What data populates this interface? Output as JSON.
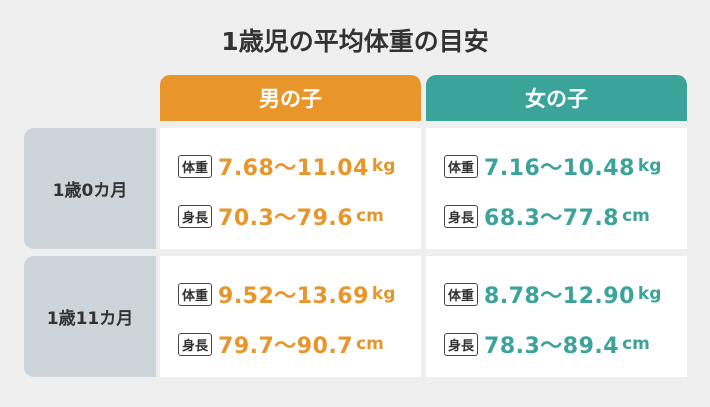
{
  "title": "1歳児の平均体重の目安",
  "table": {
    "columns": [
      "男の子",
      "女の子"
    ],
    "rows": [
      {
        "label": "1歳0カ月",
        "cells": [
          {
            "weight": {
              "label": "体重",
              "value": "7.68～11.04",
              "unit": "kg"
            },
            "height": {
              "label": "身長",
              "value": "70.3～79.6",
              "unit": "cm"
            }
          },
          {
            "weight": {
              "label": "体重",
              "value": "7.16～10.48",
              "unit": "kg"
            },
            "height": {
              "label": "身長",
              "value": "68.3～77.8",
              "unit": "cm"
            }
          }
        ]
      },
      {
        "label": "1歳11カ月",
        "cells": [
          {
            "weight": {
              "label": "体重",
              "value": "9.52～13.69",
              "unit": "kg"
            },
            "height": {
              "label": "身長",
              "value": "79.7～90.7",
              "unit": "cm"
            }
          },
          {
            "weight": {
              "label": "体重",
              "value": "8.78～12.90",
              "unit": "kg"
            },
            "height": {
              "label": "身長",
              "value": "78.3～89.4",
              "unit": "cm"
            }
          }
        ]
      }
    ]
  }
}
